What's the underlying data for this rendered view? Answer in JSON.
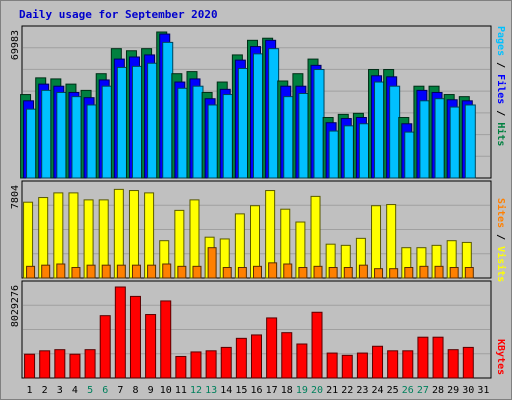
{
  "title": "Daily usage for September 2020",
  "chart_data": [
    {
      "type": "bar",
      "panel": "hits-files-pages",
      "x": [
        "1",
        "2",
        "3",
        "4",
        "5",
        "6",
        "7",
        "8",
        "9",
        "10",
        "11",
        "12",
        "13",
        "14",
        "15",
        "16",
        "17",
        "18",
        "19",
        "20",
        "21",
        "22",
        "23",
        "24",
        "25",
        "26",
        "27",
        "28",
        "29",
        "30",
        "31"
      ],
      "y_max_label": "69983",
      "ylim": [
        0,
        69983
      ],
      "series": [
        {
          "name": "Hits",
          "color": "#008040",
          "values": [
            40000,
            48000,
            47500,
            45000,
            42000,
            50000,
            62000,
            61000,
            62000,
            69983,
            50000,
            51000,
            41000,
            46000,
            59000,
            66000,
            67000,
            46500,
            50000,
            57000,
            29000,
            30500,
            31000,
            52000,
            52000,
            29000,
            44000,
            44000,
            40000,
            39000,
            0
          ]
        },
        {
          "name": "Files",
          "color": "#0000ff",
          "values": [
            37000,
            45000,
            44000,
            41000,
            38500,
            47000,
            57000,
            58000,
            59000,
            69000,
            46000,
            47500,
            38000,
            42500,
            56500,
            63000,
            66000,
            44000,
            44000,
            54000,
            26500,
            28500,
            29000,
            49000,
            48500,
            26000,
            42000,
            41000,
            37500,
            37000,
            0
          ]
        },
        {
          "name": "Pages",
          "color": "#00c0ff",
          "values": [
            33000,
            42000,
            41000,
            39000,
            35000,
            44000,
            53000,
            53500,
            55000,
            65000,
            43000,
            44000,
            35000,
            40000,
            52500,
            59500,
            62000,
            39000,
            40500,
            52000,
            22500,
            25000,
            26000,
            46000,
            44000,
            22000,
            37000,
            38000,
            34000,
            35000,
            0
          ]
        }
      ]
    },
    {
      "type": "bar",
      "panel": "visits-sites",
      "x": [
        "1",
        "2",
        "3",
        "4",
        "5",
        "6",
        "7",
        "8",
        "9",
        "10",
        "11",
        "12",
        "13",
        "14",
        "15",
        "16",
        "17",
        "18",
        "19",
        "20",
        "21",
        "22",
        "23",
        "24",
        "25",
        "26",
        "27",
        "28",
        "29",
        "30",
        "31"
      ],
      "y_max_label": "7804",
      "ylim": [
        0,
        7804
      ],
      "series": [
        {
          "name": "Visits",
          "color": "#ffff00",
          "values": [
            6500,
            6900,
            7300,
            7300,
            6700,
            6700,
            7600,
            7500,
            7300,
            3200,
            5800,
            6700,
            3500,
            3350,
            5500,
            6200,
            7500,
            5900,
            4800,
            7000,
            2900,
            2800,
            3400,
            6200,
            6300,
            2600,
            2600,
            2800,
            3200,
            3050,
            0
          ]
        },
        {
          "name": "Sites",
          "color": "#ff8000",
          "values": [
            1000,
            1100,
            1200,
            900,
            1100,
            1100,
            1100,
            1100,
            1100,
            1200,
            1000,
            1000,
            2600,
            900,
            900,
            1000,
            1300,
            1200,
            900,
            1000,
            900,
            900,
            1100,
            800,
            800,
            900,
            1000,
            1000,
            900,
            900,
            0
          ]
        }
      ]
    },
    {
      "type": "bar",
      "panel": "kbytes",
      "x": [
        "1",
        "2",
        "3",
        "4",
        "5",
        "6",
        "7",
        "8",
        "9",
        "10",
        "11",
        "12",
        "13",
        "14",
        "15",
        "16",
        "17",
        "18",
        "19",
        "20",
        "21",
        "22",
        "23",
        "24",
        "25",
        "26",
        "27",
        "28",
        "29",
        "30",
        "31"
      ],
      "y_max_label": "8029276",
      "ylim": [
        0,
        8029276
      ],
      "series": [
        {
          "name": "KBytes",
          "color": "#ff0000",
          "values": [
            2100000,
            2400000,
            2500000,
            2100000,
            2500000,
            5500000,
            8029276,
            7200000,
            5600000,
            6800000,
            1900000,
            2300000,
            2400000,
            2700000,
            3500000,
            3800000,
            5300000,
            4000000,
            3000000,
            5800000,
            2200000,
            2000000,
            2200000,
            2800000,
            2400000,
            2400000,
            3600000,
            3600000,
            2500000,
            2700000,
            0
          ]
        }
      ]
    }
  ],
  "day_labels": [
    "1",
    "2",
    "3",
    "4",
    "5",
    "6",
    "7",
    "8",
    "9",
    "10",
    "11",
    "12",
    "13",
    "14",
    "15",
    "16",
    "17",
    "18",
    "19",
    "20",
    "21",
    "22",
    "23",
    "24",
    "25",
    "26",
    "27",
    "28",
    "29",
    "30",
    "31"
  ],
  "weekend_days": [
    "5",
    "6",
    "12",
    "13",
    "19",
    "20",
    "26",
    "27"
  ],
  "weekday_color": "#000000",
  "weekend_color": "#00805c",
  "legend": {
    "top": [
      {
        "text": "Pages",
        "color": "#00c0ff"
      },
      {
        "text": " / ",
        "color": "#000000"
      },
      {
        "text": "Files",
        "color": "#0000ff"
      },
      {
        "text": " / ",
        "color": "#000000"
      },
      {
        "text": "Hits",
        "color": "#008040"
      }
    ],
    "middle": [
      {
        "text": "Sites",
        "color": "#ff8000"
      },
      {
        "text": " / ",
        "color": "#000000"
      },
      {
        "text": "Visits",
        "color": "#ffff00"
      }
    ],
    "bottom": [
      {
        "text": "KBytes",
        "color": "#ff0000"
      }
    ]
  }
}
